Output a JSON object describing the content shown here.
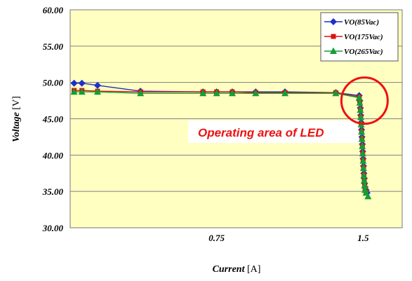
{
  "chart_data": {
    "type": "line",
    "title": "",
    "xlabel": "Current",
    "xlabel_unit": "[A]",
    "ylabel": "Voltage",
    "ylabel_unit": "[V]",
    "xlim": [
      0,
      1.7
    ],
    "ylim": [
      30,
      60
    ],
    "yticks": [
      "30.00",
      "35.00",
      "40.00",
      "45.00",
      "50.00",
      "55.00",
      "60.00"
    ],
    "xticks": [
      "0.75",
      "1.5"
    ],
    "grid": "horizontal",
    "legend_position": "top-right",
    "series": [
      {
        "name": "VO(85Vac)",
        "color": "#1f2fcc",
        "marker": "diamond",
        "x": [
          0.02,
          0.06,
          0.14,
          0.36,
          0.68,
          0.75,
          0.83,
          0.95,
          1.1,
          1.36,
          1.48,
          1.483,
          1.486,
          1.488,
          1.49,
          1.492,
          1.494,
          1.496,
          1.498,
          1.5,
          1.502,
          1.504,
          1.506,
          1.508,
          1.51,
          1.515,
          1.52
        ],
        "y": [
          49.9,
          49.9,
          49.6,
          48.8,
          48.7,
          48.7,
          48.7,
          48.7,
          48.7,
          48.6,
          48.2,
          47.5,
          46.5,
          45.5,
          44.5,
          43.5,
          42.5,
          41.5,
          40.5,
          39.5,
          38.5,
          37.5,
          36.8,
          36.1,
          35.6,
          35.2,
          34.8
        ]
      },
      {
        "name": "VO(175Vac)",
        "color": "#dd1111",
        "marker": "square",
        "x": [
          0.02,
          0.06,
          0.14,
          0.36,
          0.68,
          0.75,
          0.83,
          0.95,
          1.1,
          1.36,
          1.48,
          1.483,
          1.486,
          1.488,
          1.49,
          1.492,
          1.494,
          1.496,
          1.498,
          1.5,
          1.502,
          1.504,
          1.506,
          1.508,
          1.51,
          1.515
        ],
        "y": [
          48.9,
          48.9,
          48.8,
          48.7,
          48.7,
          48.7,
          48.7,
          48.6,
          48.6,
          48.6,
          48.0,
          47.3,
          46.3,
          45.3,
          44.3,
          43.3,
          42.3,
          41.3,
          40.3,
          39.3,
          38.3,
          37.3,
          36.6,
          35.9,
          35.4,
          34.9
        ]
      },
      {
        "name": "VO(265Vac)",
        "color": "#11a033",
        "marker": "triangle",
        "x": [
          0.02,
          0.06,
          0.14,
          0.36,
          0.68,
          0.75,
          0.83,
          0.95,
          1.1,
          1.36,
          1.48,
          1.483,
          1.486,
          1.488,
          1.49,
          1.492,
          1.494,
          1.496,
          1.498,
          1.5,
          1.502,
          1.504,
          1.506,
          1.508,
          1.51,
          1.515,
          1.525
        ],
        "y": [
          48.7,
          48.7,
          48.7,
          48.5,
          48.5,
          48.5,
          48.5,
          48.5,
          48.5,
          48.5,
          47.9,
          47.2,
          46.2,
          45.2,
          44.2,
          43.2,
          42.2,
          41.2,
          40.2,
          39.2,
          38.2,
          37.2,
          36.5,
          35.8,
          35.2,
          34.8,
          34.3
        ]
      }
    ],
    "annotations": [
      {
        "type": "text",
        "text": "Operating area of LED",
        "color": "#ee1111"
      },
      {
        "type": "circle",
        "color": "#ee1111",
        "center_data": [
          1.5,
          47.4
        ]
      }
    ]
  }
}
